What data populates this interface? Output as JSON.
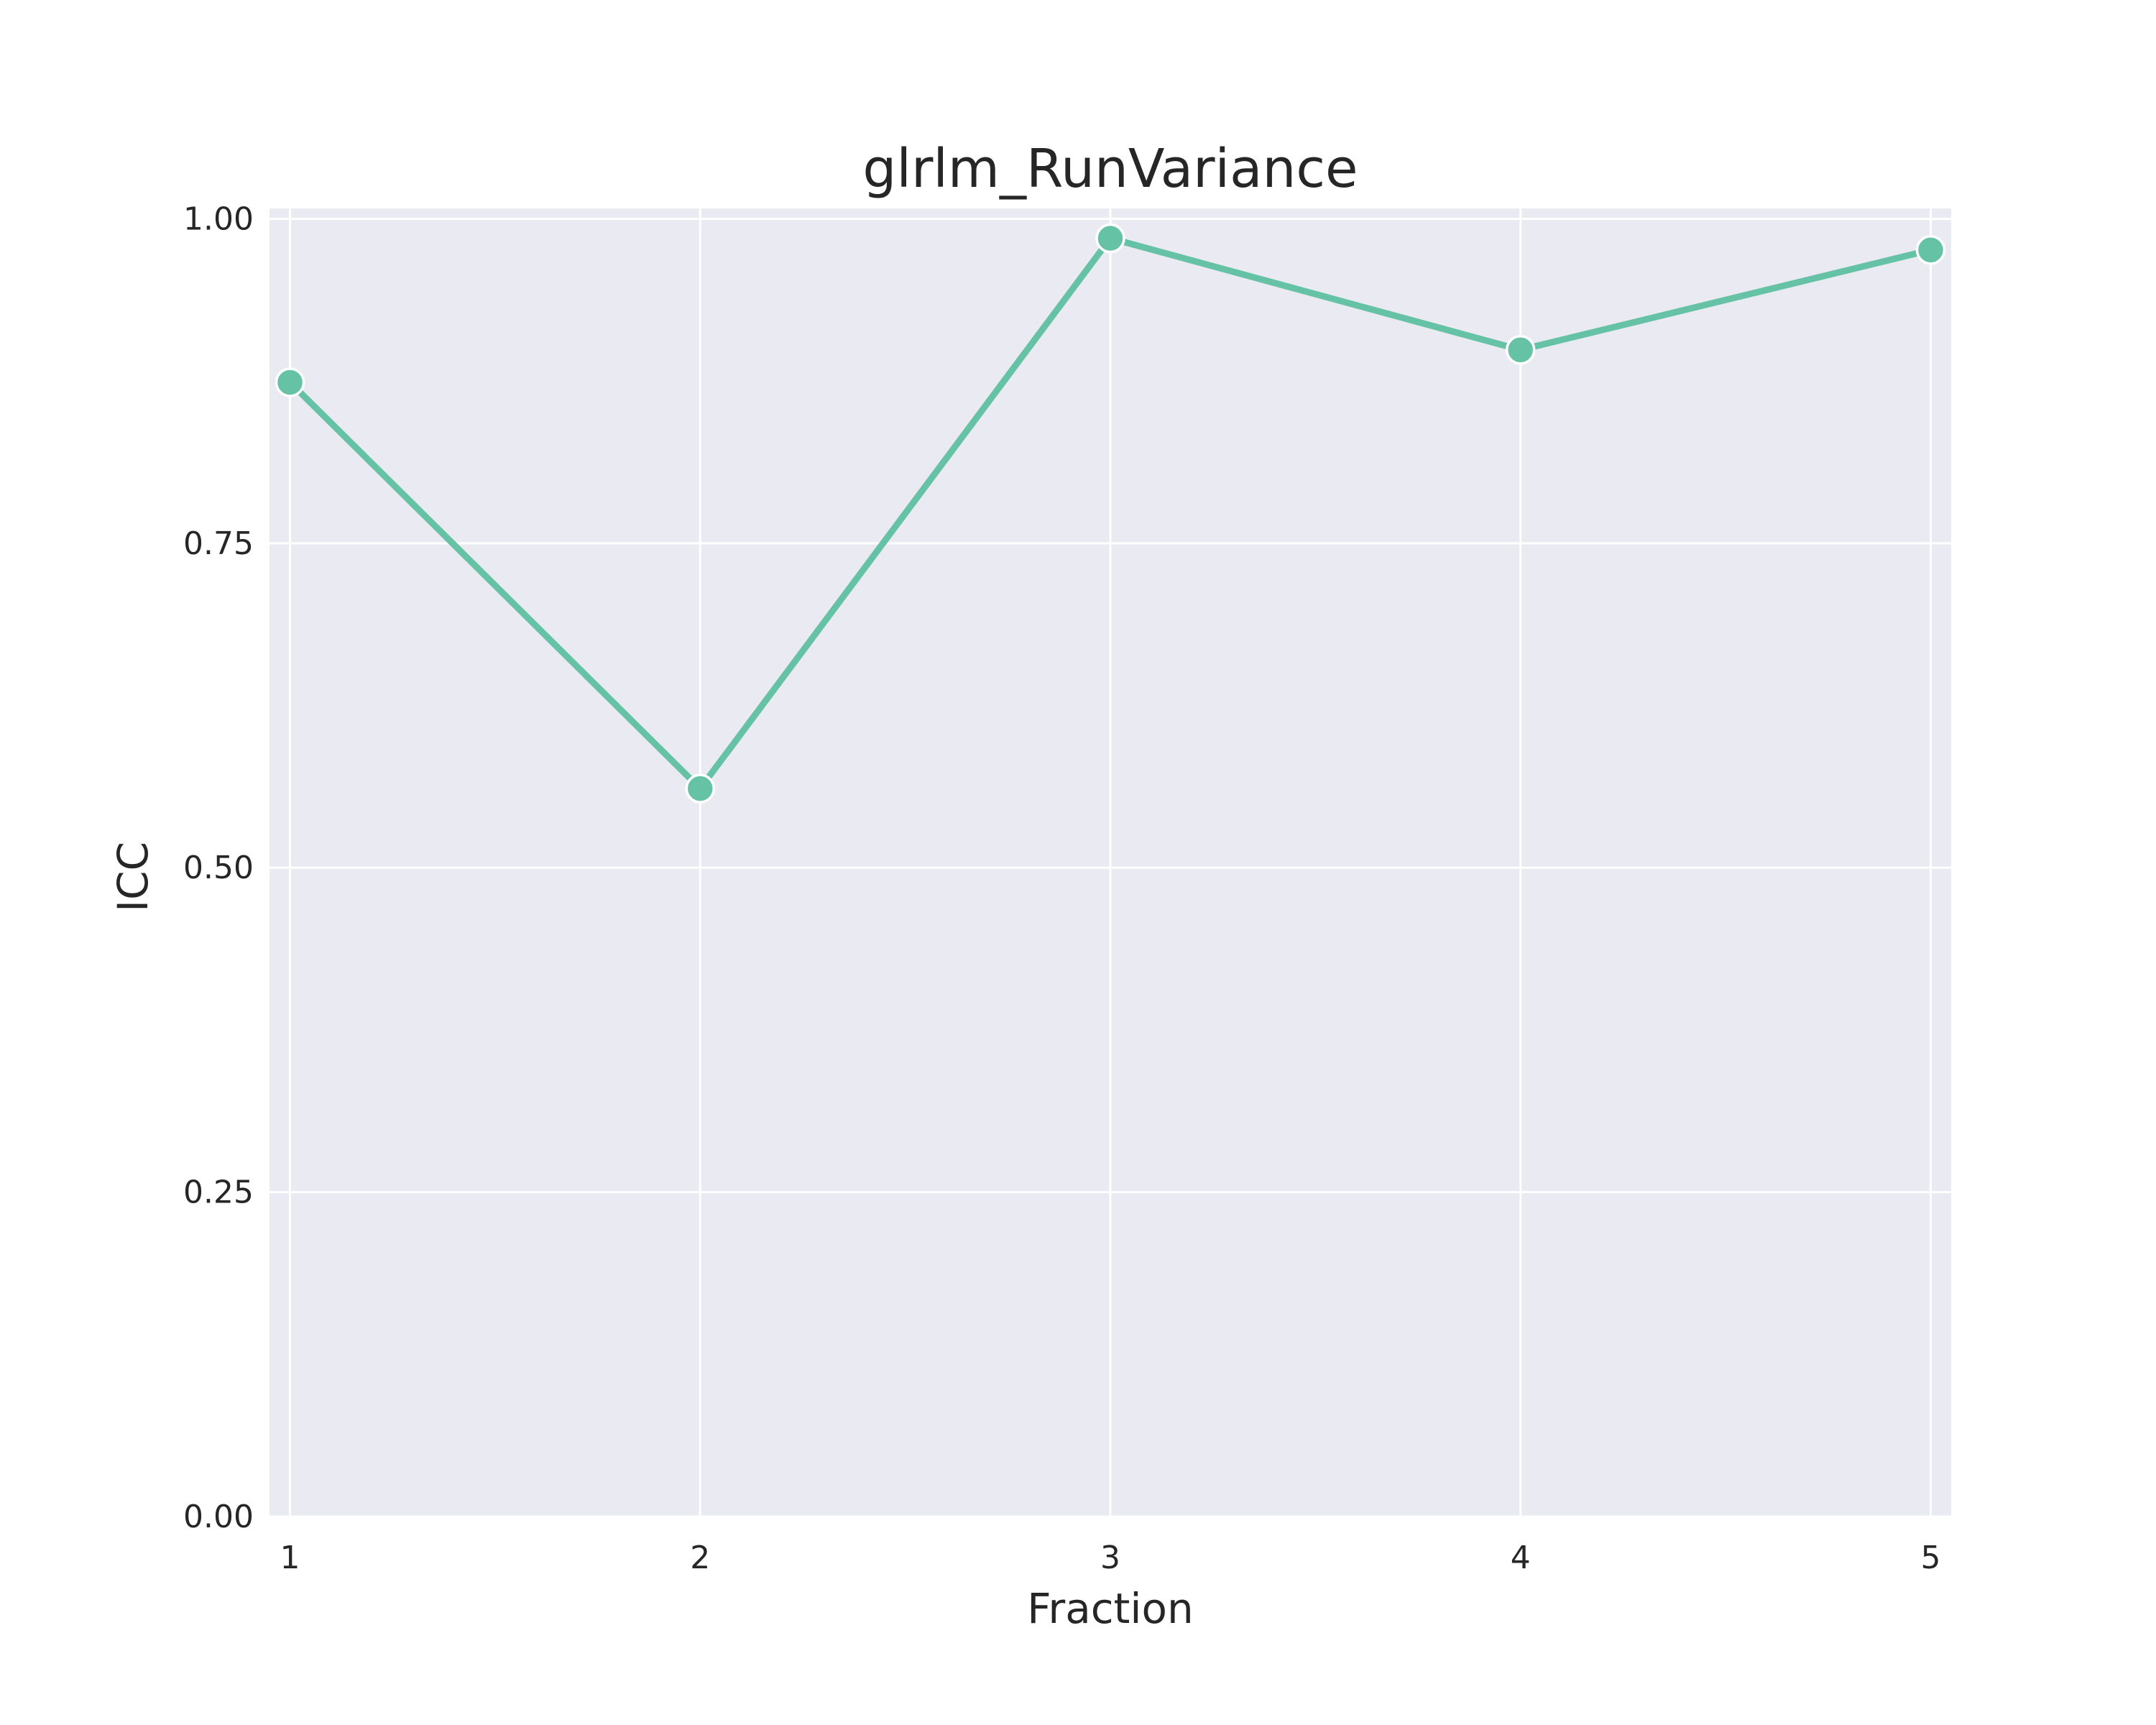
{
  "chart_data": {
    "type": "line",
    "title": "glrlm_RunVariance",
    "xlabel": "Fraction",
    "ylabel": "ICC",
    "x": [
      1,
      2,
      3,
      4,
      5
    ],
    "series": [
      {
        "values": [
          0.874,
          0.561,
          0.985,
          0.899,
          0.976
        ]
      }
    ],
    "xlim": [
      0.95,
      5.05
    ],
    "ylim": [
      0,
      1.008
    ],
    "xticks": [
      "1",
      "2",
      "3",
      "4",
      "5"
    ],
    "yticks": [
      "0.00",
      "0.25",
      "0.50",
      "0.75",
      "1.00"
    ],
    "grid": true,
    "colors": {
      "line": "#66c2a5",
      "background": "#eaeaf2",
      "grid": "#ffffff"
    }
  }
}
